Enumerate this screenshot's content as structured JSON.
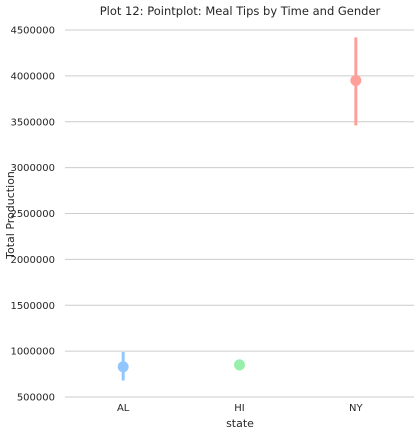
{
  "chart_data": {
    "type": "scatter",
    "subtype": "pointplot",
    "title": "Plot 12: Pointplot: Meal Tips by Time and Gender",
    "xlabel": "state",
    "ylabel": "Total Production",
    "categories": [
      "AL",
      "HI",
      "NY"
    ],
    "values": [
      830000,
      850000,
      3950000
    ],
    "ci_low": [
      680000,
      790000,
      3460000
    ],
    "ci_high": [
      990000,
      910000,
      4420000
    ],
    "colors": [
      "#92c6ff",
      "#97f0aa",
      "#ff9f9a"
    ],
    "ylim": [
      500000,
      4500000
    ],
    "yticks": [
      500000,
      1000000,
      1500000,
      2000000,
      2500000,
      3000000,
      3500000,
      4000000,
      4500000
    ],
    "ytick_labels": [
      "500000",
      "1000000",
      "1500000",
      "2000000",
      "2500000",
      "3000000",
      "3500000",
      "4000000",
      "4500000"
    ],
    "grid": "horizontal",
    "legend": "none"
  }
}
